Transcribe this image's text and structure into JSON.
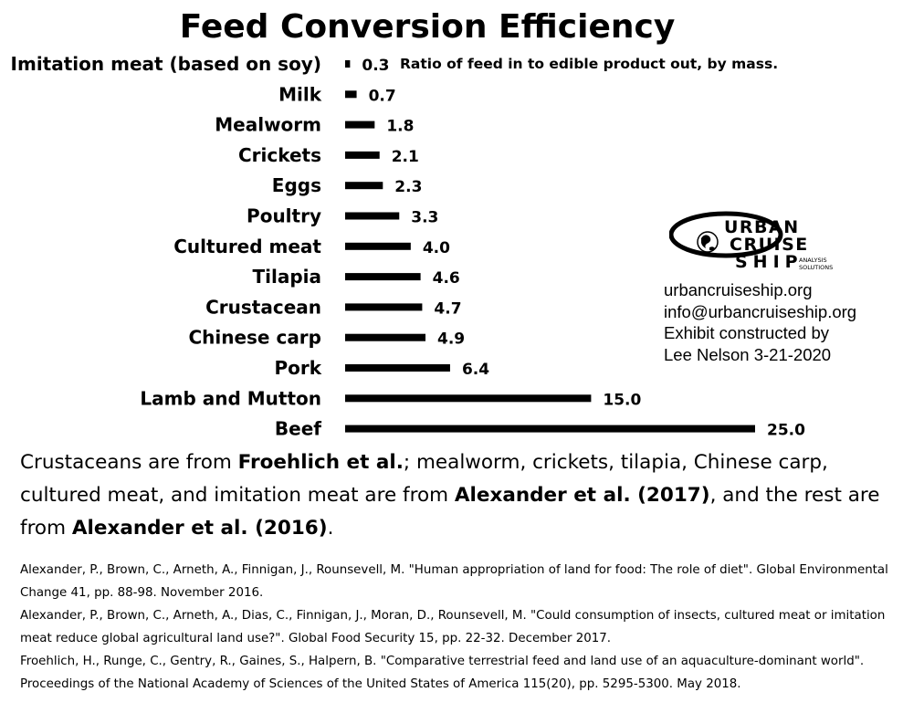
{
  "chart_data": {
    "type": "bar",
    "orientation": "horizontal",
    "title": "Feed Conversion Efficiency",
    "annotation": "Ratio of feed in to edible product out, by mass.",
    "categories": [
      "Imitation meat (based on soy)",
      "Milk",
      "Mealworm",
      "Crickets",
      "Eggs",
      "Poultry",
      "Cultured meat",
      "Tilapia",
      "Crustacean",
      "Chinese carp",
      "Pork",
      "Lamb and Mutton",
      "Beef"
    ],
    "values": [
      0.3,
      0.7,
      1.8,
      2.1,
      2.3,
      3.3,
      4.0,
      4.6,
      4.7,
      4.9,
      6.4,
      15.0,
      25.0
    ],
    "value_labels": [
      "0.3",
      "0.7",
      "1.8",
      "2.1",
      "2.3",
      "3.3",
      "4.0",
      "4.6",
      "4.7",
      "4.9",
      "6.4",
      "15.0",
      "25.0"
    ],
    "xlim": [
      0,
      25
    ],
    "grid": false,
    "bar_color": "#000000"
  },
  "logo": {
    "brand_line1": "URBAN",
    "brand_line2": "CRUISE",
    "brand_line3": "SHIP",
    "sub_line1": "ANALYSIS",
    "sub_line2": "SOLUTIONS"
  },
  "contact": {
    "website": "urbancruiseship.org",
    "email": "info@urbancruiseship.org",
    "credit_line1": "Exhibit constructed by",
    "credit_line2": "Lee Nelson 3-21-2020"
  },
  "summary": {
    "part1": "Crustaceans are from ",
    "source1": "Froehlich et al.",
    "part2": "; mealworm, crickets, tilapia, Chinese carp, cultured meat, and imitation meat are from ",
    "source2": "Alexander et al. (2017)",
    "part3": ", and the rest are from ",
    "source3": "Alexander et al. (2016)",
    "part4": "."
  },
  "references": [
    "Alexander, P., Brown, C., Arneth, A., Finnigan, J., Rounsevell, M. \"Human appropriation of land for food: The role of diet\". Global Environmental Change 41, pp. 88-98. November 2016.",
    "Alexander, P., Brown, C., Arneth, A., Dias, C., Finnigan, J., Moran, D., Rounsevell, M. \"Could consumption of insects, cultured meat or imitation meat reduce global agricultural land use?\". Global Food Security 15, pp. 22-32. December 2017.",
    "Froehlich, H., Runge, C., Gentry, R., Gaines, S., Halpern, B. \"Comparative terrestrial feed and land use of an aquaculture-dominant world\". Proceedings of the National Academy of Sciences of the United States of America 115(20), pp. 5295-5300. May 2018."
  ]
}
